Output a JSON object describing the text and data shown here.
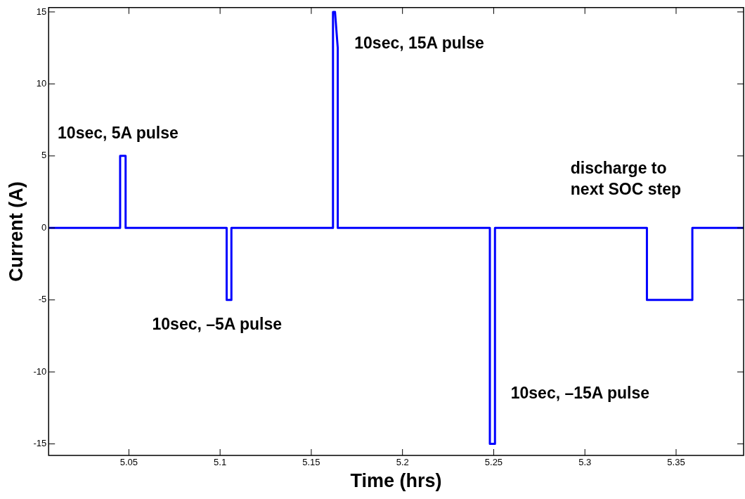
{
  "chart_data": {
    "type": "line",
    "xlabel": "Time (hrs)",
    "ylabel": "Current (A)",
    "x": [
      5.006,
      5.0452,
      5.0452,
      5.0482,
      5.0482,
      5.1036,
      5.1036,
      5.1062,
      5.1062,
      5.1619,
      5.1619,
      5.163,
      5.1645,
      5.1645,
      5.2479,
      5.2479,
      5.2507,
      5.2507,
      5.334,
      5.334,
      5.3589,
      5.3589,
      5.387
    ],
    "series": [
      {
        "color": "#0000ff",
        "values": [
          0,
          0,
          5,
          5,
          0,
          0,
          -5,
          -5,
          0,
          0,
          15,
          15,
          12.5,
          0,
          0,
          -15,
          -15,
          0,
          0,
          -5,
          -5,
          0,
          0
        ]
      }
    ],
    "xlim": [
      5.006,
      5.387
    ],
    "xticks": [
      5.05,
      5.1,
      5.15,
      5.2,
      5.25,
      5.3,
      5.35
    ],
    "ylim": [
      -15.8,
      15.3
    ],
    "yticks": [
      -15,
      -10,
      -5,
      0,
      5,
      10,
      15
    ],
    "grid": false,
    "legend": false,
    "marker": "none",
    "line_style": "solid",
    "annotations": [
      "10sec, 5A pulse",
      "10sec, 15A pulse",
      "10sec, –5A pulse",
      "10sec, –15A pulse",
      "discharge to\nnext SOC step"
    ]
  }
}
